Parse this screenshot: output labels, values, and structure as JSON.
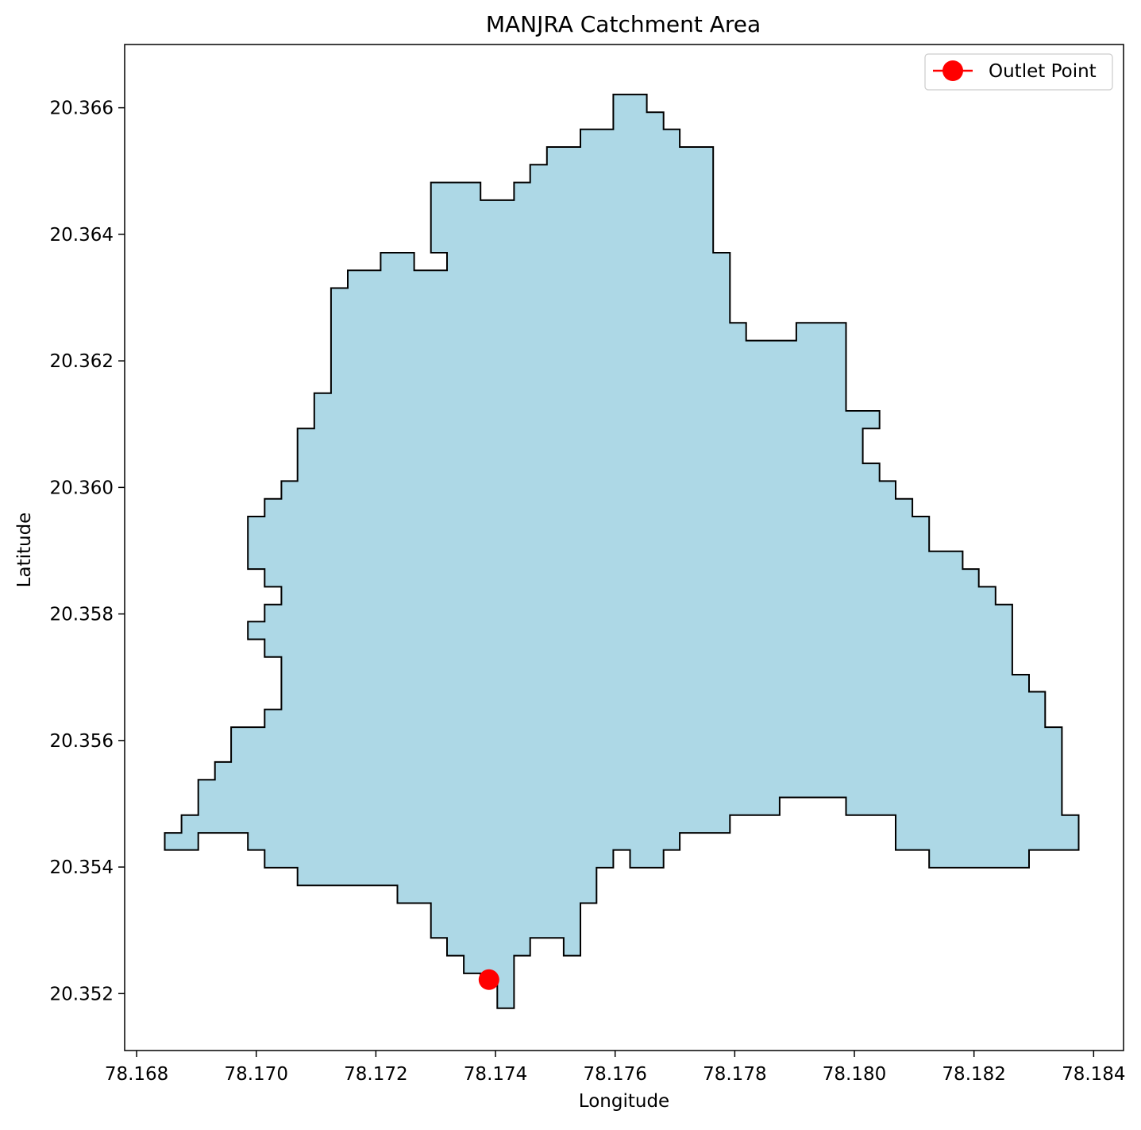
{
  "chart_data": {
    "type": "area",
    "chart_kind": "catchment-boundary-map",
    "title": "MANJRA Catchment Area",
    "xlabel": "Longitude",
    "ylabel": "Latitude",
    "xlim": [
      78.1678,
      78.1845
    ],
    "ylim": [
      20.3511,
      20.367
    ],
    "xticks": [
      78.168,
      78.17,
      78.172,
      78.174,
      78.176,
      78.178,
      78.18,
      78.182,
      78.184
    ],
    "xtick_labels": [
      "78.168",
      "78.170",
      "78.172",
      "78.174",
      "78.176",
      "78.178",
      "78.180",
      "78.182",
      "78.184"
    ],
    "yticks": [
      20.352,
      20.354,
      20.356,
      20.358,
      20.36,
      20.362,
      20.364,
      20.366
    ],
    "ytick_labels": [
      "20.352",
      "20.354",
      "20.356",
      "20.358",
      "20.360",
      "20.362",
      "20.364",
      "20.366"
    ],
    "grid": false,
    "legend_position": "top-right",
    "colors": {
      "catchment_fill": "#add8e6",
      "catchment_edge": "#000000",
      "outlet": "#ff0000"
    },
    "series": [
      {
        "type": "polygon",
        "boundary": [
          [
            78.17375,
            20.35218
          ],
          [
            78.17375,
            20.35232
          ],
          [
            78.17347,
            20.35232
          ],
          [
            78.17347,
            20.3526
          ],
          [
            78.17319,
            20.3526
          ],
          [
            78.17319,
            20.35288
          ],
          [
            78.17292,
            20.35288
          ],
          [
            78.17292,
            20.35343
          ],
          [
            78.17236,
            20.35343
          ],
          [
            78.17236,
            20.35371
          ],
          [
            78.17069,
            20.35371
          ],
          [
            78.17069,
            20.35399
          ],
          [
            78.17014,
            20.35399
          ],
          [
            78.17014,
            20.35427
          ],
          [
            78.16986,
            20.35427
          ],
          [
            78.16986,
            20.35454
          ],
          [
            78.16903,
            20.35454
          ],
          [
            78.16903,
            20.35427
          ],
          [
            78.16847,
            20.35427
          ],
          [
            78.16847,
            20.35454
          ],
          [
            78.16875,
            20.35454
          ],
          [
            78.16875,
            20.35482
          ],
          [
            78.16903,
            20.35482
          ],
          [
            78.16903,
            20.35538
          ],
          [
            78.16931,
            20.35538
          ],
          [
            78.16931,
            20.35566
          ],
          [
            78.16958,
            20.35566
          ],
          [
            78.16958,
            20.35621
          ],
          [
            78.17014,
            20.35621
          ],
          [
            78.17014,
            20.35649
          ],
          [
            78.17042,
            20.35649
          ],
          [
            78.17042,
            20.35732
          ],
          [
            78.17014,
            20.35732
          ],
          [
            78.17014,
            20.3576
          ],
          [
            78.16986,
            20.3576
          ],
          [
            78.16986,
            20.35788
          ],
          [
            78.17014,
            20.35788
          ],
          [
            78.17014,
            20.35815
          ],
          [
            78.17042,
            20.35815
          ],
          [
            78.17042,
            20.35843
          ],
          [
            78.17014,
            20.35843
          ],
          [
            78.17014,
            20.35871
          ],
          [
            78.16986,
            20.35871
          ],
          [
            78.16986,
            20.35954
          ],
          [
            78.17014,
            20.35954
          ],
          [
            78.17014,
            20.35982
          ],
          [
            78.17042,
            20.35982
          ],
          [
            78.17042,
            20.3601
          ],
          [
            78.17069,
            20.3601
          ],
          [
            78.17069,
            20.36093
          ],
          [
            78.17097,
            20.36093
          ],
          [
            78.17097,
            20.36149
          ],
          [
            78.17125,
            20.36149
          ],
          [
            78.17125,
            20.36315
          ],
          [
            78.17153,
            20.36315
          ],
          [
            78.17153,
            20.36343
          ],
          [
            78.17208,
            20.36343
          ],
          [
            78.17208,
            20.36371
          ],
          [
            78.17264,
            20.36371
          ],
          [
            78.17264,
            20.36343
          ],
          [
            78.17319,
            20.36343
          ],
          [
            78.17319,
            20.36371
          ],
          [
            78.17292,
            20.36371
          ],
          [
            78.17292,
            20.36482
          ],
          [
            78.17375,
            20.36482
          ],
          [
            78.17375,
            20.36454
          ],
          [
            78.17431,
            20.36454
          ],
          [
            78.17431,
            20.36482
          ],
          [
            78.17458,
            20.36482
          ],
          [
            78.17458,
            20.3651
          ],
          [
            78.17486,
            20.3651
          ],
          [
            78.17486,
            20.36538
          ],
          [
            78.17542,
            20.36538
          ],
          [
            78.17542,
            20.36566
          ],
          [
            78.17597,
            20.36566
          ],
          [
            78.17597,
            20.36621
          ],
          [
            78.17653,
            20.36621
          ],
          [
            78.17653,
            20.36593
          ],
          [
            78.17681,
            20.36593
          ],
          [
            78.17681,
            20.36566
          ],
          [
            78.17708,
            20.36566
          ],
          [
            78.17708,
            20.36538
          ],
          [
            78.17764,
            20.36538
          ],
          [
            78.17764,
            20.36371
          ],
          [
            78.17792,
            20.36371
          ],
          [
            78.17792,
            20.3626
          ],
          [
            78.17819,
            20.3626
          ],
          [
            78.17819,
            20.36232
          ],
          [
            78.17903,
            20.36232
          ],
          [
            78.17903,
            20.3626
          ],
          [
            78.17986,
            20.3626
          ],
          [
            78.17986,
            20.36121
          ],
          [
            78.18042,
            20.36121
          ],
          [
            78.18042,
            20.36093
          ],
          [
            78.18014,
            20.36093
          ],
          [
            78.18014,
            20.36038
          ],
          [
            78.18042,
            20.36038
          ],
          [
            78.18042,
            20.3601
          ],
          [
            78.18069,
            20.3601
          ],
          [
            78.18069,
            20.35982
          ],
          [
            78.18097,
            20.35982
          ],
          [
            78.18097,
            20.35954
          ],
          [
            78.18125,
            20.35954
          ],
          [
            78.18125,
            20.35899
          ],
          [
            78.18181,
            20.35899
          ],
          [
            78.18181,
            20.35871
          ],
          [
            78.18208,
            20.35871
          ],
          [
            78.18208,
            20.35843
          ],
          [
            78.18236,
            20.35843
          ],
          [
            78.18236,
            20.35815
          ],
          [
            78.18264,
            20.35815
          ],
          [
            78.18264,
            20.35704
          ],
          [
            78.18292,
            20.35704
          ],
          [
            78.18292,
            20.35677
          ],
          [
            78.18319,
            20.35677
          ],
          [
            78.18319,
            20.35621
          ],
          [
            78.18347,
            20.35621
          ],
          [
            78.18347,
            20.35482
          ],
          [
            78.18375,
            20.35482
          ],
          [
            78.18375,
            20.35427
          ],
          [
            78.18292,
            20.35427
          ],
          [
            78.18292,
            20.35399
          ],
          [
            78.18125,
            20.35399
          ],
          [
            78.18125,
            20.35427
          ],
          [
            78.18069,
            20.35427
          ],
          [
            78.18069,
            20.35482
          ],
          [
            78.17986,
            20.35482
          ],
          [
            78.17986,
            20.3551
          ],
          [
            78.17875,
            20.3551
          ],
          [
            78.17875,
            20.35482
          ],
          [
            78.17792,
            20.35482
          ],
          [
            78.17792,
            20.35454
          ],
          [
            78.17708,
            20.35454
          ],
          [
            78.17708,
            20.35427
          ],
          [
            78.17681,
            20.35427
          ],
          [
            78.17681,
            20.35399
          ],
          [
            78.17625,
            20.35399
          ],
          [
            78.17625,
            20.35427
          ],
          [
            78.17597,
            20.35427
          ],
          [
            78.17597,
            20.35399
          ],
          [
            78.17569,
            20.35399
          ],
          [
            78.17569,
            20.35343
          ],
          [
            78.17542,
            20.35343
          ],
          [
            78.17542,
            20.3526
          ],
          [
            78.17514,
            20.3526
          ],
          [
            78.17514,
            20.35288
          ],
          [
            78.17458,
            20.35288
          ],
          [
            78.17458,
            20.3526
          ],
          [
            78.17431,
            20.3526
          ],
          [
            78.17431,
            20.35177
          ],
          [
            78.17403,
            20.35177
          ],
          [
            78.17403,
            20.35218
          ]
        ]
      },
      {
        "type": "point",
        "name": "Outlet Point",
        "x": 78.17389,
        "y": 20.35222
      }
    ]
  }
}
